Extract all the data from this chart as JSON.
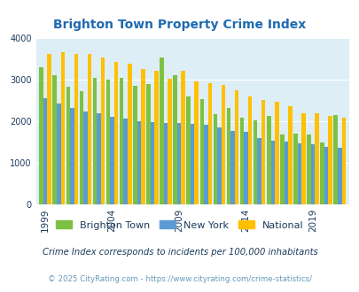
{
  "title": "Brighton Town Property Crime Index",
  "subtitle": "Crime Index corresponds to incidents per 100,000 inhabitants",
  "footer": "© 2025 CityRating.com - https://www.cityrating.com/crime-statistics/",
  "years": [
    1999,
    2000,
    2001,
    2002,
    2003,
    2004,
    2005,
    2006,
    2007,
    2008,
    2009,
    2010,
    2011,
    2012,
    2013,
    2014,
    2015,
    2016,
    2017,
    2018,
    2019,
    2020,
    2021
  ],
  "brighton_town": [
    3300,
    3100,
    2820,
    2730,
    3040,
    3000,
    3040,
    2850,
    2900,
    3520,
    3100,
    2590,
    2520,
    2160,
    2320,
    2080,
    2020,
    2120,
    1670,
    1710,
    1680,
    1480,
    2140
  ],
  "new_york": [
    2560,
    2430,
    2310,
    2240,
    2190,
    2100,
    2060,
    2000,
    1980,
    1960,
    1950,
    1940,
    1920,
    1840,
    1760,
    1740,
    1590,
    1530,
    1510,
    1470,
    1440,
    1390,
    1360
  ],
  "national": [
    3620,
    3650,
    3620,
    3610,
    3520,
    3430,
    3380,
    3250,
    3210,
    3030,
    3220,
    2960,
    2910,
    2870,
    2740,
    2600,
    2500,
    2460,
    2360,
    2190,
    2200,
    2120,
    2090
  ],
  "bar_colors": [
    "#7dc142",
    "#5b9bd5",
    "#ffc000"
  ],
  "bg_color": "#ddeef6",
  "title_color": "#1f6bb0",
  "text_color": "#1a3a5c",
  "footer_color": "#6699bb",
  "ylim": [
    0,
    4000
  ],
  "yticks": [
    0,
    1000,
    2000,
    3000,
    4000
  ],
  "xtick_years": [
    1999,
    2004,
    2009,
    2014,
    2019
  ],
  "legend_labels": [
    "Brighton Town",
    "New York",
    "National"
  ]
}
